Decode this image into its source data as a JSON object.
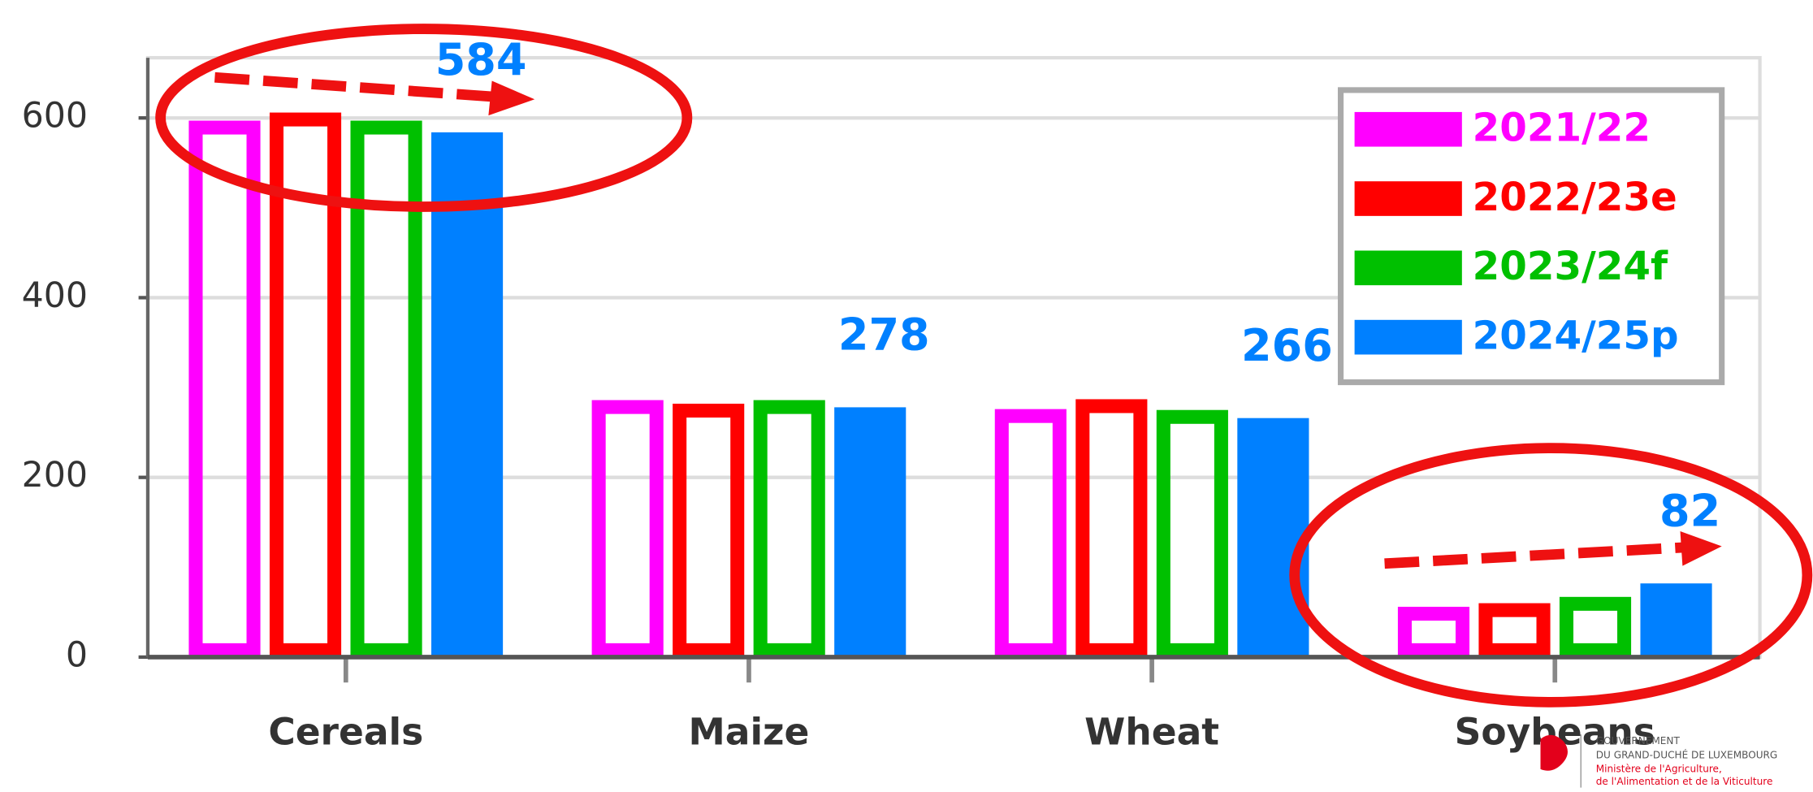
{
  "chart_data": {
    "type": "bar",
    "categories": [
      "Cereals",
      "Maize",
      "Wheat",
      "Soybeans"
    ],
    "series": [
      {
        "name": "2021/22",
        "color": "#ff00ff",
        "hollow": true,
        "values": [
          597,
          286,
          276,
          56
        ]
      },
      {
        "name": "2022/23e",
        "color": "#ff0000",
        "hollow": true,
        "values": [
          606,
          282,
          287,
          60
        ]
      },
      {
        "name": "2023/24f",
        "color": "#00c000",
        "hollow": true,
        "values": [
          597,
          286,
          275,
          67
        ]
      },
      {
        "name": "2024/25p",
        "color": "#0080ff",
        "hollow": false,
        "values": [
          584,
          278,
          266,
          82
        ]
      }
    ],
    "ylim": [
      0,
      667
    ],
    "yticks": [
      0,
      200,
      400,
      600
    ],
    "grid": true,
    "legend": "top-right"
  },
  "logo": {
    "lines": [
      "GOUVERNEMENT",
      "DU GRAND-DUCHÉ DE LUXEMBOURG",
      "Ministère de l'Agriculture,",
      "de l'Alimentation et de la Viticulture"
    ]
  }
}
